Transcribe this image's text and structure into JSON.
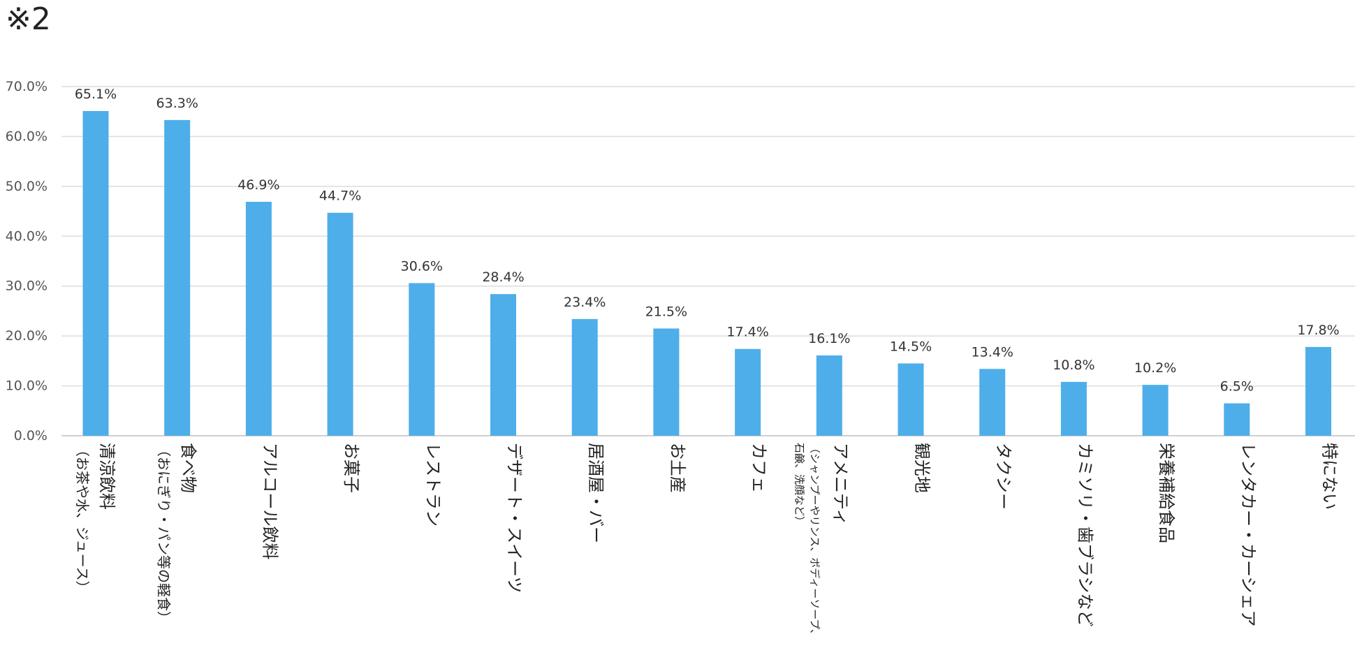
{
  "page_title": "※2",
  "chart_data": {
    "type": "bar",
    "y_tick_format": "percent_1dp",
    "ylim": [
      0,
      70
    ],
    "y_ticks": [
      "0.0%",
      "10.0%",
      "20.0%",
      "30.0%",
      "40.0%",
      "50.0%",
      "60.0%",
      "70.0%"
    ],
    "grid": true,
    "bar_color": "#4eaeea",
    "categories": [
      {
        "main": "清涼飲料",
        "sub": [
          "（お茶や水、ジュース）"
        ]
      },
      {
        "main": "食べ物",
        "sub": [
          "（おにぎり・パン等の軽食）"
        ]
      },
      {
        "main": "アルコール飲料",
        "sub": []
      },
      {
        "main": "お菓子",
        "sub": []
      },
      {
        "main": "レストラン",
        "sub": []
      },
      {
        "main": "デザート・スイーツ",
        "sub": []
      },
      {
        "main": "居酒屋・バー",
        "sub": []
      },
      {
        "main": "お土産",
        "sub": []
      },
      {
        "main": "カフェ",
        "sub": []
      },
      {
        "main": "アメニティ",
        "sub": [
          "（シャンプーやリンス、ボディーソープ、",
          "石鹸、洗顔など）"
        ]
      },
      {
        "main": "観光地",
        "sub": []
      },
      {
        "main": "タクシー",
        "sub": []
      },
      {
        "main": "カミソリ・歯ブラシなど",
        "sub": []
      },
      {
        "main": "栄養補給食品",
        "sub": []
      },
      {
        "main": "レンタカー・カーシェア",
        "sub": []
      },
      {
        "main": "特にない",
        "sub": []
      }
    ],
    "values": [
      65.1,
      63.3,
      46.9,
      44.7,
      30.6,
      28.4,
      23.4,
      21.5,
      17.4,
      16.1,
      14.5,
      13.4,
      10.8,
      10.2,
      6.5,
      17.8
    ],
    "value_labels": [
      "65.1%",
      "63.3%",
      "46.9%",
      "44.7%",
      "30.6%",
      "28.4%",
      "23.4%",
      "21.5%",
      "17.4%",
      "16.1%",
      "14.5%",
      "13.4%",
      "10.8%",
      "10.2%",
      "6.5%",
      "17.8%"
    ]
  }
}
